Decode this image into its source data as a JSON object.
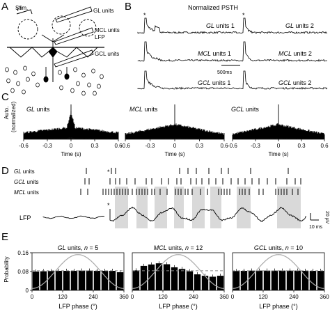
{
  "panel_labels": [
    "A",
    "B",
    "C",
    "D",
    "E"
  ],
  "panelA": {
    "stim": "Stim.",
    "gl_units": "GL units",
    "mcl_units": "MCL units",
    "lfp": "LFP",
    "gcl_units": "GCL units"
  },
  "panelB": {
    "title": "Normalized PSTH",
    "scalebar": "500ms",
    "asterisk": "*",
    "traces": [
      {
        "group": "GL",
        "suffix": "units 1"
      },
      {
        "group": "MCL",
        "suffix": "units 1"
      },
      {
        "group": "GCL",
        "suffix": "units 1"
      },
      {
        "group": "GL",
        "suffix": "units 2"
      },
      {
        "group": "MCL",
        "suffix": "units 2"
      },
      {
        "group": "GCL",
        "suffix": "units 2"
      }
    ]
  },
  "panelC": {
    "ylabel_line1": "Auto.",
    "ylabel_line2": "(normalized)",
    "xlabel": "Time (s)",
    "xticks": [
      "-0.6",
      "-0.3",
      "0",
      "0.3",
      "0.6"
    ],
    "plots": [
      {
        "group": "GL",
        "title_suffix": "units"
      },
      {
        "group": "MCL",
        "title_suffix": "units"
      },
      {
        "group": "GCL",
        "title_suffix": "units"
      }
    ]
  },
  "panelD": {
    "rows": [
      {
        "group": "GL",
        "suffix": "units"
      },
      {
        "group": "GCL",
        "suffix": "units"
      },
      {
        "group": "MCL",
        "suffix": "units"
      }
    ],
    "lfp_label": "LFP",
    "asterisk": "*",
    "scale_time": "10 ms",
    "scale_amp": "20 μV"
  },
  "chart_data": [
    {
      "type": "bar",
      "title": "GL units, n = 5",
      "group": "GL",
      "title_mid": "units, ",
      "n_label": "n",
      "n_value": "= 5",
      "xlabel": "LFP phase (°)",
      "ylabel": "Probability",
      "xlim": [
        0,
        360
      ],
      "ylim": [
        0,
        0.16
      ],
      "xticks": [
        "0",
        "120",
        "240",
        "360"
      ],
      "yticks": [
        "0",
        "0.08",
        "0.16"
      ],
      "bin_width_deg": 30,
      "values": [
        0.08,
        0.081,
        0.082,
        0.083,
        0.083,
        0.083,
        0.084,
        0.084,
        0.083,
        0.083,
        0.083,
        0.077
      ],
      "reference_line": 0.0833
    },
    {
      "type": "bar",
      "title": "MCL units, n = 12",
      "group": "MCL",
      "title_mid": "units, ",
      "n_label": "n",
      "n_value": "= 12",
      "xlabel": "LFP phase (°)",
      "xlim": [
        0,
        360
      ],
      "ylim": [
        0,
        0.16
      ],
      "xticks": [
        "0",
        "120",
        "240",
        "360"
      ],
      "bin_width_deg": 30,
      "values": [
        0.085,
        0.104,
        0.11,
        0.115,
        0.111,
        0.098,
        0.091,
        0.081,
        0.068,
        0.062,
        0.058,
        0.062
      ],
      "reference_line": 0.0833
    },
    {
      "type": "bar",
      "title": "GCL units, n = 10",
      "group": "GCL",
      "title_mid": "units, ",
      "n_label": "n",
      "n_value": "= 10",
      "xlabel": "LFP phase (°)",
      "xlim": [
        0,
        360
      ],
      "ylim": [
        0,
        0.16
      ],
      "xticks": [
        "0",
        "120",
        "240",
        "360"
      ],
      "bin_width_deg": 30,
      "values": [
        0.082,
        0.083,
        0.084,
        0.084,
        0.084,
        0.084,
        0.084,
        0.084,
        0.084,
        0.083,
        0.083,
        0.083
      ],
      "reference_line": 0.0833
    }
  ]
}
